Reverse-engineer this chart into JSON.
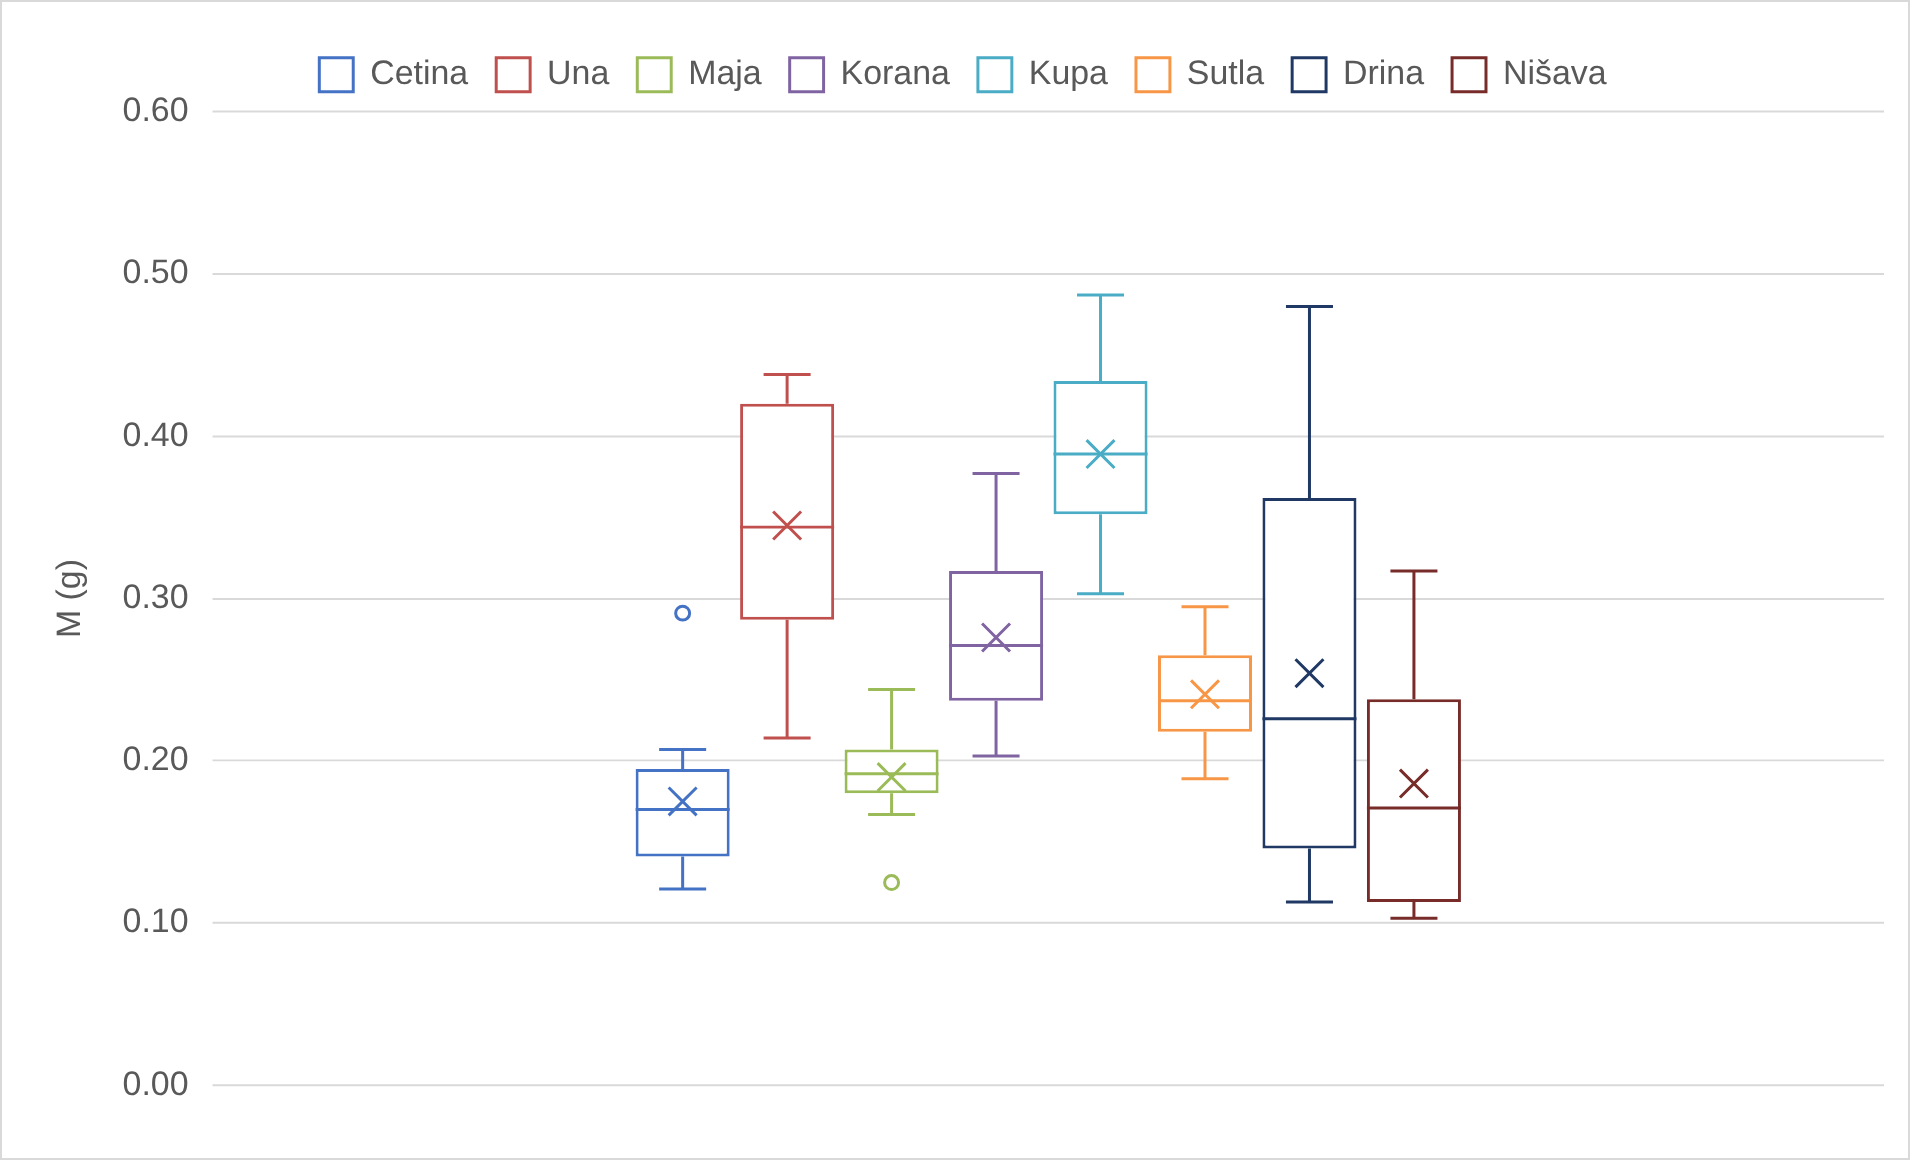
{
  "chart_data": {
    "type": "box",
    "categories": [
      null
    ],
    "ylabel": "M (g)",
    "ylim": [
      0,
      0.6
    ],
    "yticks": [
      {
        "value": 0,
        "label": "0.00"
      },
      {
        "value": 0.1,
        "label": "0.10"
      },
      {
        "value": 0.2,
        "label": "0.20"
      },
      {
        "value": 0.3,
        "label": "0.30"
      },
      {
        "value": 0.4,
        "label": "0.40"
      },
      {
        "value": 0.5,
        "label": "0.50"
      },
      {
        "value": 0.6,
        "label": "0.60"
      }
    ],
    "grid": "y",
    "legend": "top",
    "series": [
      {
        "name": "Cetina",
        "color": "#4472c4",
        "boxes": [
          {
            "low": 0.121,
            "q1": 0.141,
            "median": 0.17,
            "q3": 0.195,
            "high": 0.207,
            "mean": 0.175,
            "outliers": [
              0.291
            ]
          }
        ]
      },
      {
        "name": "Una",
        "color": "#c0504d",
        "boxes": [
          {
            "low": 0.214,
            "q1": 0.287,
            "median": 0.344,
            "q3": 0.42,
            "high": 0.438,
            "mean": 0.345
          }
        ]
      },
      {
        "name": "Maja",
        "color": "#9bbb59",
        "boxes": [
          {
            "low": 0.167,
            "q1": 0.18,
            "median": 0.192,
            "q3": 0.207,
            "high": 0.244,
            "mean": 0.19,
            "outliers": [
              0.125
            ]
          }
        ]
      },
      {
        "name": "Korana",
        "color": "#8064a2",
        "boxes": [
          {
            "low": 0.203,
            "q1": 0.237,
            "median": 0.271,
            "q3": 0.317,
            "high": 0.377,
            "mean": 0.276
          }
        ]
      },
      {
        "name": "Kupa",
        "color": "#4bacc6",
        "boxes": [
          {
            "low": 0.303,
            "q1": 0.352,
            "median": 0.389,
            "q3": 0.434,
            "high": 0.487,
            "mean": 0.389
          }
        ]
      },
      {
        "name": "Sutla",
        "color": "#f79646",
        "boxes": [
          {
            "low": 0.189,
            "q1": 0.218,
            "median": 0.237,
            "q3": 0.265,
            "high": 0.295,
            "mean": 0.241
          }
        ]
      },
      {
        "name": "Drina",
        "color": "#1f3864",
        "boxes": [
          {
            "low": 0.113,
            "q1": 0.146,
            "median": 0.226,
            "q3": 0.362,
            "high": 0.48,
            "mean": 0.254
          }
        ]
      },
      {
        "name": "Nišava",
        "color": "#772c2a",
        "boxes": [
          {
            "low": 0.103,
            "q1": 0.113,
            "median": 0.171,
            "q3": 0.238,
            "high": 0.317,
            "mean": 0.186
          }
        ]
      }
    ]
  }
}
